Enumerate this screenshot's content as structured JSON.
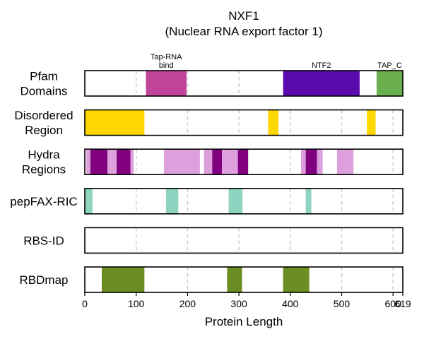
{
  "chart_data": {
    "type": "bar",
    "title": "NXF1",
    "subtitle": "(Nuclear RNA export factor 1)",
    "xlabel": "Protein Length",
    "xlim": [
      0,
      619
    ],
    "xticks": [
      0,
      100,
      200,
      300,
      400,
      500,
      600,
      619
    ],
    "xtick_labels": [
      "0",
      "100",
      "200",
      "300",
      "400",
      "500",
      "600",
      "619"
    ],
    "gridlines_x": [
      100,
      200,
      300,
      400,
      500,
      600
    ],
    "tracks": [
      {
        "name": "Pfam Domains",
        "label_lines": [
          "Pfam",
          "Domains"
        ],
        "segments": [
          {
            "start": 119,
            "end": 198,
            "color": "#c2439a",
            "label_lines": [
              "Tap-RNA",
              "bind"
            ]
          },
          {
            "start": 386,
            "end": 535,
            "color": "#5b0aad",
            "label_lines": [
              "NTF2"
            ]
          },
          {
            "start": 568,
            "end": 619,
            "color": "#6ab04c",
            "label_lines": [
              "TAP_C"
            ]
          }
        ]
      },
      {
        "name": "Disordered Region",
        "label_lines": [
          "Disordered",
          "Region"
        ],
        "segments": [
          {
            "start": 0,
            "end": 116,
            "color": "#ffd700"
          },
          {
            "start": 357,
            "end": 377,
            "color": "#ffd700"
          },
          {
            "start": 549,
            "end": 566,
            "color": "#ffd700"
          }
        ]
      },
      {
        "name": "Hydra Regions",
        "label_lines": [
          "Hydra",
          "Regions"
        ],
        "segments": [
          {
            "start": 3,
            "end": 11,
            "color": "#dda0dd"
          },
          {
            "start": 11,
            "end": 44,
            "color": "#800080"
          },
          {
            "start": 44,
            "end": 62,
            "color": "#dda0dd"
          },
          {
            "start": 62,
            "end": 89,
            "color": "#800080"
          },
          {
            "start": 89,
            "end": 95,
            "color": "#dda0dd"
          },
          {
            "start": 154,
            "end": 194,
            "color": "#dda0dd"
          },
          {
            "start": 194,
            "end": 224,
            "color": "#dda0dd"
          },
          {
            "start": 232,
            "end": 248,
            "color": "#dda0dd"
          },
          {
            "start": 248,
            "end": 267,
            "color": "#800080"
          },
          {
            "start": 267,
            "end": 298,
            "color": "#dda0dd"
          },
          {
            "start": 298,
            "end": 318,
            "color": "#800080"
          },
          {
            "start": 421,
            "end": 430,
            "color": "#dda0dd"
          },
          {
            "start": 430,
            "end": 452,
            "color": "#800080"
          },
          {
            "start": 452,
            "end": 463,
            "color": "#dda0dd"
          },
          {
            "start": 491,
            "end": 523,
            "color": "#dda0dd"
          }
        ]
      },
      {
        "name": "pepFAX-RIC",
        "label_lines": [
          "pepFAX-RIC"
        ],
        "segments": [
          {
            "start": 0,
            "end": 15,
            "color": "#8fd4c1"
          },
          {
            "start": 158,
            "end": 174,
            "color": "#8fd4c1"
          },
          {
            "start": 174,
            "end": 182,
            "color": "#8fd4c1"
          },
          {
            "start": 280,
            "end": 307,
            "color": "#8fd4c1"
          },
          {
            "start": 430,
            "end": 441,
            "color": "#8fd4c1"
          }
        ]
      },
      {
        "name": "RBS-ID",
        "label_lines": [
          "RBS-ID"
        ],
        "segments": []
      },
      {
        "name": "RBDmap",
        "label_lines": [
          "RBDmap"
        ],
        "segments": [
          {
            "start": 33,
            "end": 116,
            "color": "#6b8e23"
          },
          {
            "start": 277,
            "end": 306,
            "color": "#6b8e23"
          },
          {
            "start": 386,
            "end": 437,
            "color": "#6b8e23"
          }
        ]
      }
    ]
  }
}
